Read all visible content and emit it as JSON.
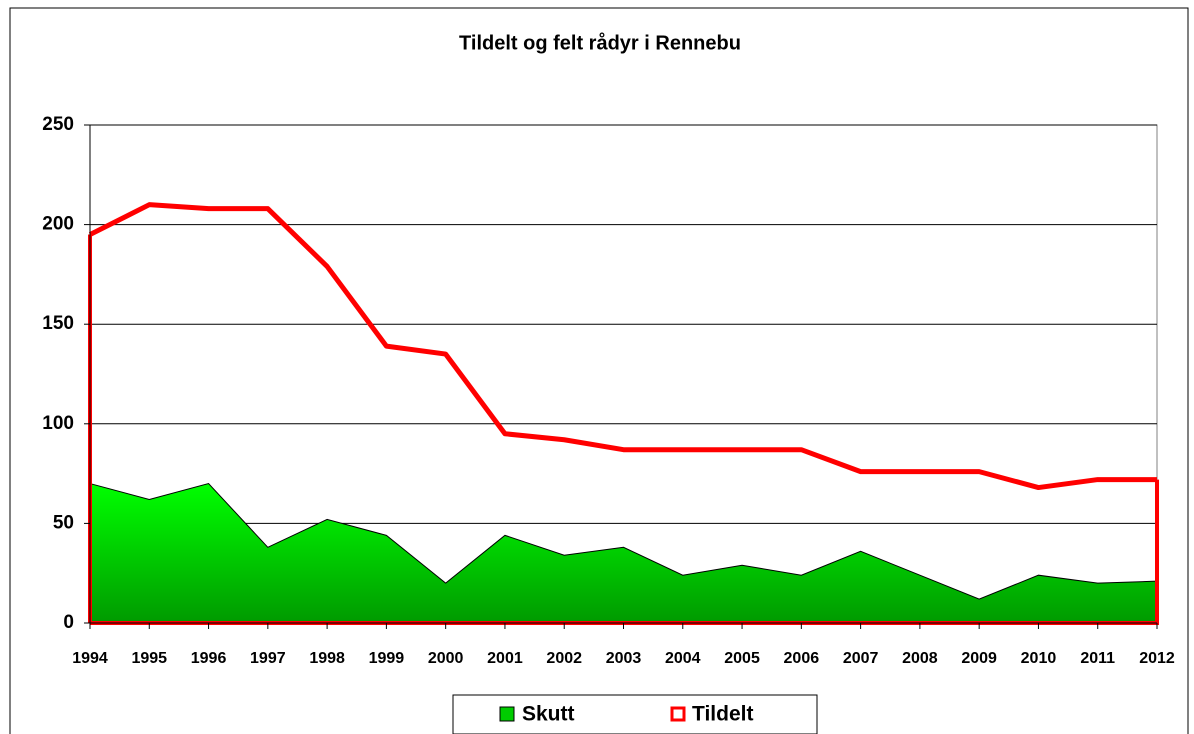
{
  "chart_data": {
    "type": "area",
    "title": "Tildelt og felt rådyr i Rennebu",
    "categories": [
      "1994",
      "1995",
      "1996",
      "1997",
      "1998",
      "1999",
      "2000",
      "2001",
      "2002",
      "2003",
      "2004",
      "2005",
      "2006",
      "2007",
      "2008",
      "2009",
      "2010",
      "2011",
      "2012"
    ],
    "series": [
      {
        "name": "Skutt",
        "color": "#00cc00",
        "fill": "area",
        "values": [
          70,
          62,
          70,
          38,
          52,
          44,
          20,
          44,
          34,
          38,
          24,
          29,
          24,
          36,
          24,
          12,
          24,
          20,
          21
        ]
      },
      {
        "name": "Tildelt",
        "color": "#ff0000",
        "fill": "outline",
        "values": [
          195,
          210,
          208,
          208,
          179,
          139,
          135,
          95,
          92,
          87,
          87,
          87,
          87,
          76,
          76,
          76,
          68,
          72,
          72
        ]
      }
    ],
    "ylim": [
      0,
      250
    ],
    "yticks": [
      0,
      50,
      100,
      150,
      200,
      250
    ],
    "grid": true,
    "legend": "bottom"
  }
}
